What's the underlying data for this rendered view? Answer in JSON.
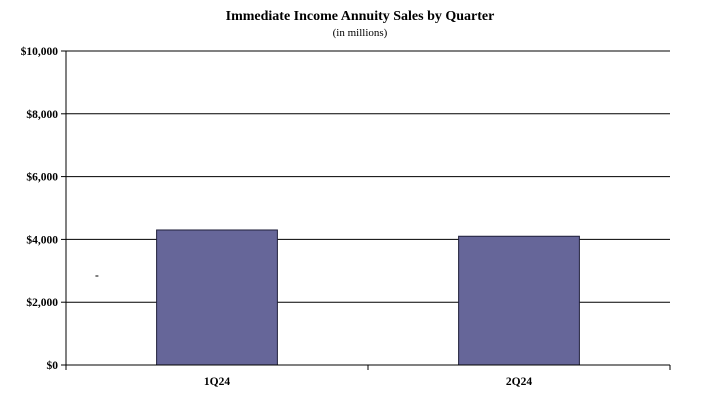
{
  "chart_data": {
    "type": "bar",
    "title": "Immediate Income Annuity Sales by Quarter",
    "subtitle": "(in millions)",
    "categories": [
      "1Q24",
      "2Q24"
    ],
    "values": [
      4300,
      4100
    ],
    "xlabel": "",
    "ylabel": "",
    "ylim": [
      0,
      10000
    ],
    "yticks": [
      0,
      2000,
      4000,
      6000,
      8000,
      10000
    ],
    "ytick_labels": [
      "$0",
      "$2,000",
      "$4,000",
      "$6,000",
      "$8,000",
      "$10,000"
    ],
    "grid": true,
    "legend": "none",
    "colors": {
      "bar": "#666699",
      "bar_stroke": "#1f1f3a",
      "grid": "#000000"
    },
    "annotations": [
      "-"
    ]
  }
}
